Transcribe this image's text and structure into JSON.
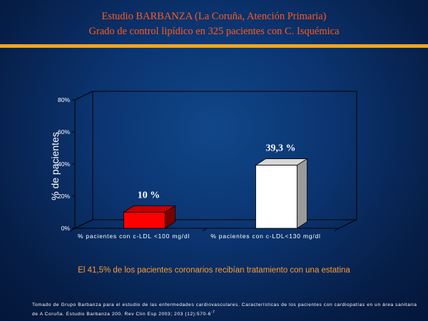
{
  "header": {
    "title_line1": "Estudio BARBANZA (La Coruña, Atención Primaria)",
    "title_line2": "Grado de control lipídico en 325 pacientes con C. Isquémica"
  },
  "footer": {
    "note": "El 41,5% de los pacientes coronarios recibían tratamiento con una estatina",
    "source": "Tomado de Grupo Barbanza para el estudio de las enfermedades cardiovasculares. Características de los pacientes con cardiopatías en un área sanitaria de A Coruña. Estudio Barbanza 200. Rev Clin Esp 2003; 203 (12):570-6"
  },
  "colors": {
    "background": "#0b3470",
    "title": "#ff5a1a",
    "accent_bar": "#f2a51c",
    "note": "#ff9a2a",
    "bar1": "#ff0000",
    "bar2": "#ffffff"
  },
  "chart_data": {
    "type": "bar",
    "categories": [
      "% pacientes con c-LDL <100 mg/dl",
      "% pacientes con c-LDL<130 mg/dl"
    ],
    "values": [
      10,
      39.3
    ],
    "data_labels": [
      "10 %",
      "39,3 %"
    ],
    "ylabel": "% de pacientes",
    "ylim": [
      0,
      80
    ],
    "yticks": [
      "0%",
      "20%",
      "40%",
      "60%",
      "80%"
    ],
    "grid": false,
    "legend": "none",
    "style": "3d"
  }
}
